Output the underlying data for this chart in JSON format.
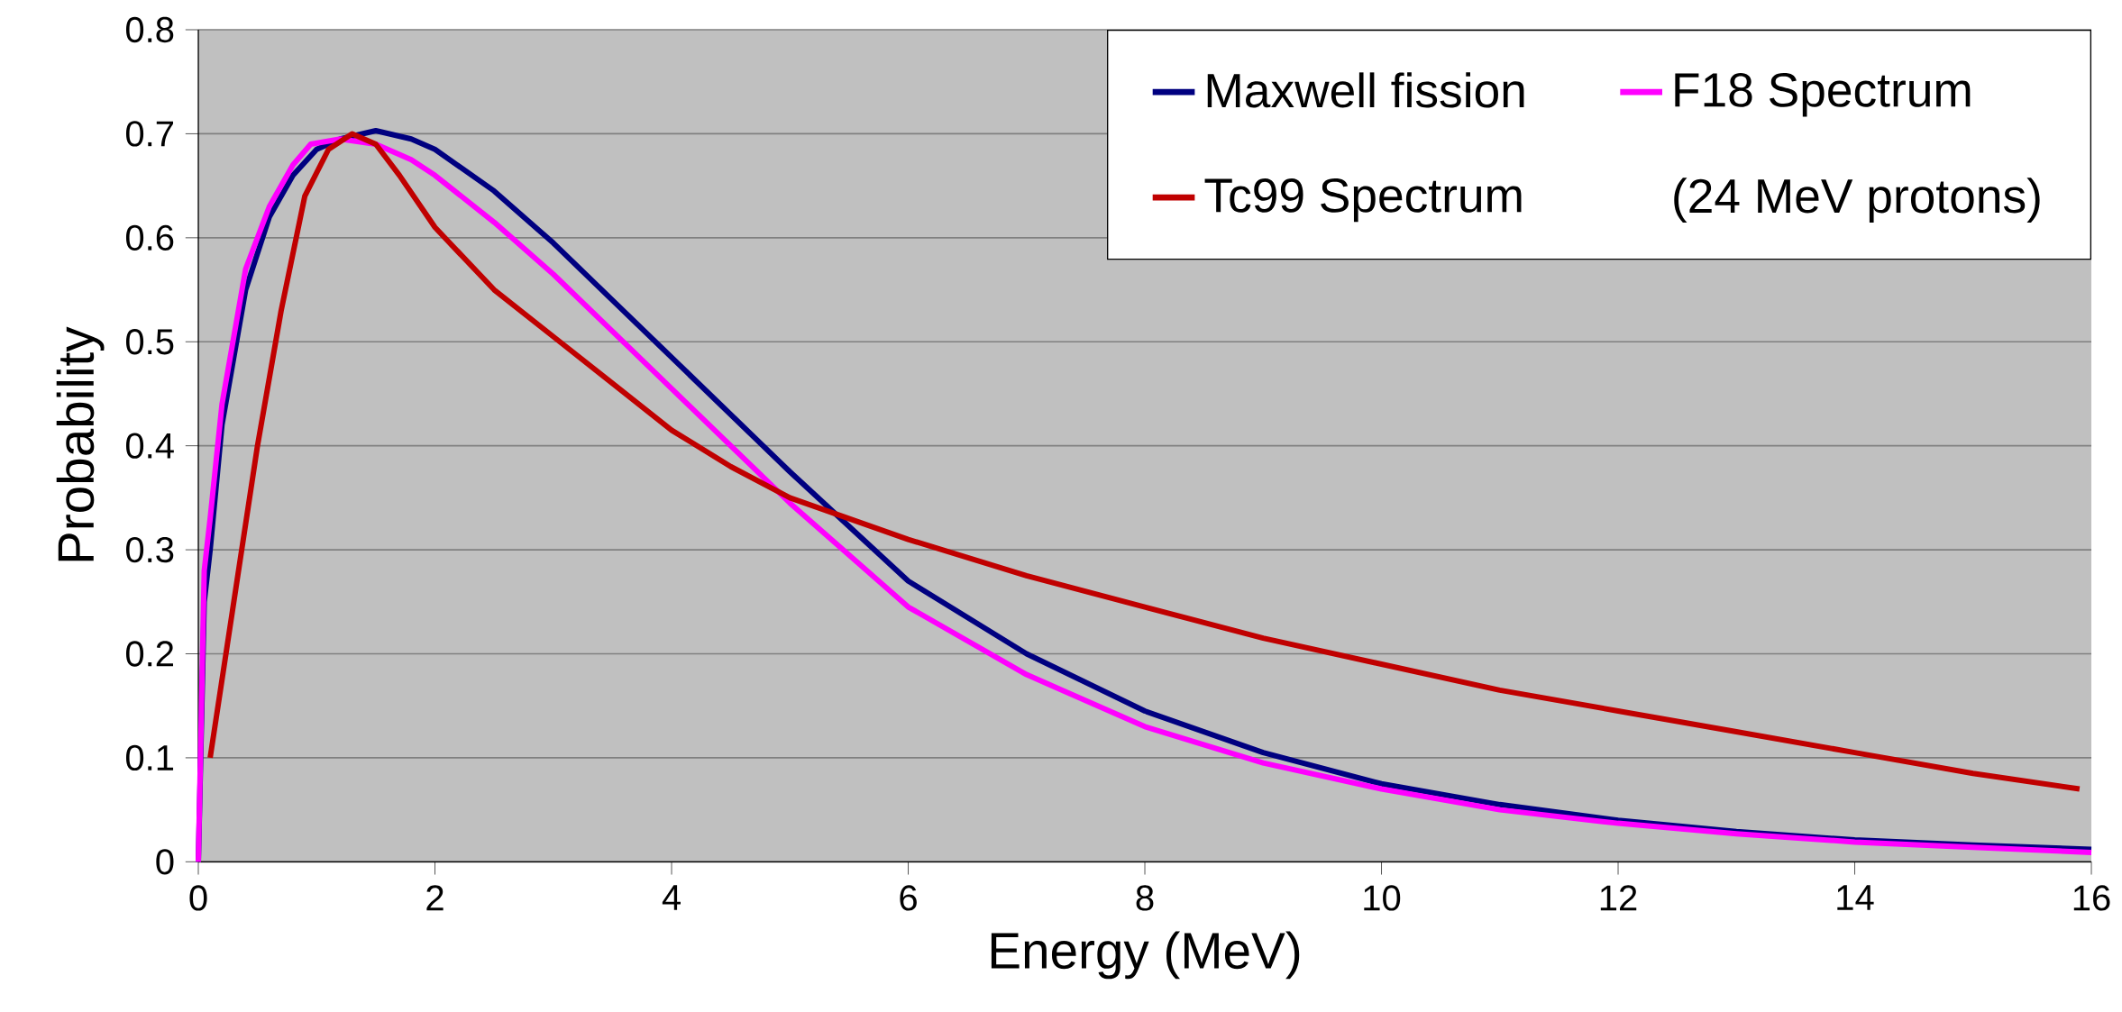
{
  "chart_data": {
    "type": "line",
    "xlabel": "Energy (MeV)",
    "ylabel": "Probability",
    "xlim": [
      0,
      16
    ],
    "xticks": [
      0,
      2,
      4,
      6,
      8,
      10,
      12,
      14,
      16
    ],
    "ylim": [
      0,
      0.8
    ],
    "yticks": [
      0,
      0.1,
      0.2,
      0.3,
      0.4,
      0.5,
      0.6,
      0.7,
      0.8
    ],
    "grid": "y",
    "legend": "top right",
    "annotations": [
      "(24 MeV protons)"
    ],
    "series": [
      {
        "name": "Maxwell fission",
        "color": "#000080",
        "x": [
          0,
          0.05,
          0.1,
          0.2,
          0.4,
          0.6,
          0.8,
          1.0,
          1.2,
          1.5,
          1.8,
          2,
          2.5,
          3,
          3.5,
          4,
          4.5,
          5,
          6,
          7,
          8,
          9,
          10,
          11,
          12,
          13,
          14,
          15,
          16
        ],
        "values": [
          0,
          0.25,
          0.3,
          0.42,
          0.55,
          0.62,
          0.66,
          0.685,
          0.695,
          0.703,
          0.695,
          0.685,
          0.645,
          0.595,
          0.54,
          0.485,
          0.43,
          0.375,
          0.27,
          0.2,
          0.145,
          0.105,
          0.075,
          0.055,
          0.04,
          0.029,
          0.021,
          0.016,
          0.012
        ]
      },
      {
        "name": "F18 Spectrum",
        "color": "#ff00ff",
        "x": [
          0,
          0.05,
          0.1,
          0.2,
          0.4,
          0.6,
          0.8,
          0.95,
          1.2,
          1.5,
          1.8,
          2,
          2.5,
          3,
          3.5,
          4,
          4.5,
          5,
          6,
          7,
          8,
          9,
          10,
          11,
          12,
          13,
          14,
          15,
          16
        ],
        "values": [
          0,
          0.28,
          0.33,
          0.44,
          0.57,
          0.63,
          0.67,
          0.69,
          0.695,
          0.69,
          0.675,
          0.66,
          0.615,
          0.565,
          0.51,
          0.455,
          0.4,
          0.345,
          0.245,
          0.18,
          0.13,
          0.095,
          0.07,
          0.05,
          0.037,
          0.027,
          0.019,
          0.014,
          0.009
        ]
      },
      {
        "name": "Tc99 Spectrum",
        "color": "#c00000",
        "x": [
          0.1,
          0.3,
          0.5,
          0.7,
          0.9,
          1.1,
          1.3,
          1.5,
          1.7,
          2,
          2.5,
          3,
          3.5,
          4,
          4.5,
          5,
          6,
          7,
          8,
          9,
          10,
          11,
          12,
          13,
          14,
          15,
          15.9
        ],
        "values": [
          0.1,
          0.25,
          0.4,
          0.53,
          0.64,
          0.685,
          0.7,
          0.69,
          0.66,
          0.61,
          0.55,
          0.505,
          0.46,
          0.415,
          0.38,
          0.35,
          0.31,
          0.275,
          0.245,
          0.215,
          0.19,
          0.165,
          0.145,
          0.125,
          0.105,
          0.085,
          0.07
        ]
      }
    ]
  }
}
